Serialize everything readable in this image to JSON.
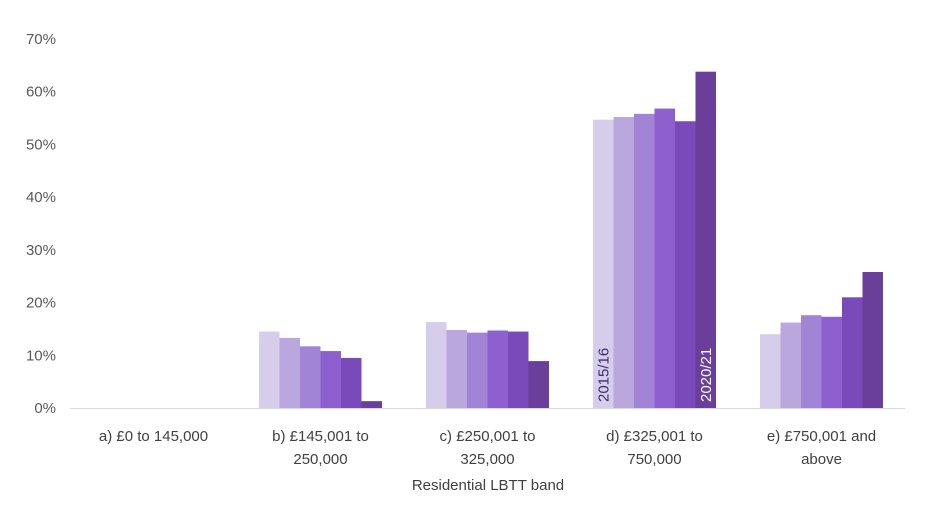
{
  "chart_data": {
    "type": "bar",
    "title": "",
    "xlabel": "Residential LBTT band",
    "ylabel": "",
    "ylim": [
      0,
      70
    ],
    "yticks": [
      "0%",
      "10%",
      "20%",
      "30%",
      "40%",
      "50%",
      "60%",
      "70%"
    ],
    "categories": [
      [
        "a) £0 to 145,000"
      ],
      [
        "b) £145,001 to",
        "250,000"
      ],
      [
        "c) £250,001 to",
        "325,000"
      ],
      [
        "d) £325,001 to",
        "750,000"
      ],
      [
        "e) £750,001 and",
        "above"
      ]
    ],
    "series": [
      {
        "values": [
          0,
          14.5,
          16.3,
          54.7,
          14.0
        ],
        "color": "#d6cdea"
      },
      {
        "values": [
          0,
          13.3,
          14.8,
          55.2,
          16.2
        ],
        "color": "#b9a7dd"
      },
      {
        "values": [
          0,
          11.7,
          14.3,
          55.8,
          17.6
        ],
        "color": "#a184d6"
      },
      {
        "values": [
          0,
          10.8,
          14.7,
          56.8,
          17.3
        ],
        "color": "#8e5fcf"
      },
      {
        "values": [
          0,
          9.5,
          14.5,
          54.4,
          21.0
        ],
        "color": "#7a4abb"
      },
      {
        "values": [
          0,
          1.3,
          8.9,
          63.8,
          25.8
        ],
        "color": "#6a3f9a"
      }
    ],
    "bar_labels": [
      {
        "series": 0,
        "category": 3,
        "text": "2015/16",
        "style": "dark"
      },
      {
        "series": 5,
        "category": 3,
        "text": "2020/21",
        "style": "light"
      }
    ],
    "grid": false,
    "legend": "none"
  }
}
